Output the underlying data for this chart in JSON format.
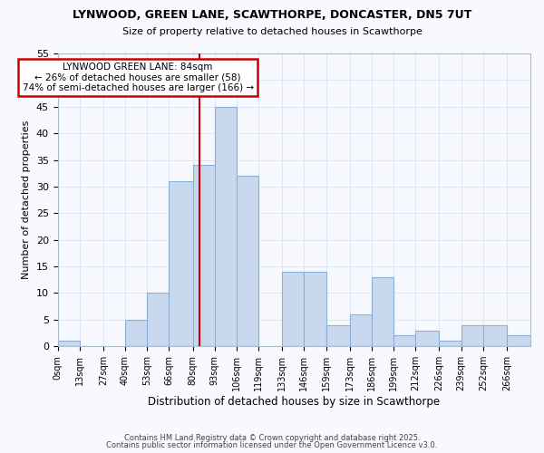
{
  "title": "LYNWOOD, GREEN LANE, SCAWTHORPE, DONCASTER, DN5 7UT",
  "subtitle": "Size of property relative to detached houses in Scawthorpe",
  "xlabel": "Distribution of detached houses by size in Scawthorpe",
  "ylabel": "Number of detached properties",
  "bar_color": "#c8d8ee",
  "bar_edge_color": "#8ab0d8",
  "bg_color": "#f7f9ff",
  "grid_color": "#dde8f8",
  "bin_labels": [
    "0sqm",
    "13sqm",
    "27sqm",
    "40sqm",
    "53sqm",
    "66sqm",
    "80sqm",
    "93sqm",
    "106sqm",
    "119sqm",
    "133sqm",
    "146sqm",
    "159sqm",
    "173sqm",
    "186sqm",
    "199sqm",
    "212sqm",
    "226sqm",
    "239sqm",
    "252sqm",
    "266sqm"
  ],
  "bin_edges": [
    0,
    13,
    27,
    40,
    53,
    66,
    80,
    93,
    106,
    119,
    133,
    146,
    159,
    173,
    186,
    199,
    212,
    226,
    239,
    252,
    266,
    280
  ],
  "bar_heights": [
    1,
    0,
    0,
    5,
    10,
    31,
    34,
    45,
    32,
    0,
    14,
    14,
    4,
    6,
    13,
    2,
    3,
    1,
    4,
    4,
    2
  ],
  "ylim": [
    0,
    55
  ],
  "yticks": [
    0,
    5,
    10,
    15,
    20,
    25,
    30,
    35,
    40,
    45,
    50,
    55
  ],
  "vline_x": 84,
  "vline_color": "#cc0000",
  "annotation_title": "LYNWOOD GREEN LANE: 84sqm",
  "annotation_line1": "← 26% of detached houses are smaller (58)",
  "annotation_line2": "74% of semi-detached houses are larger (166) →",
  "annotation_box_color": "#ffffff",
  "annotation_box_edge": "#cc0000",
  "footer1": "Contains HM Land Registry data © Crown copyright and database right 2025.",
  "footer2": "Contains public sector information licensed under the Open Government Licence v3.0."
}
